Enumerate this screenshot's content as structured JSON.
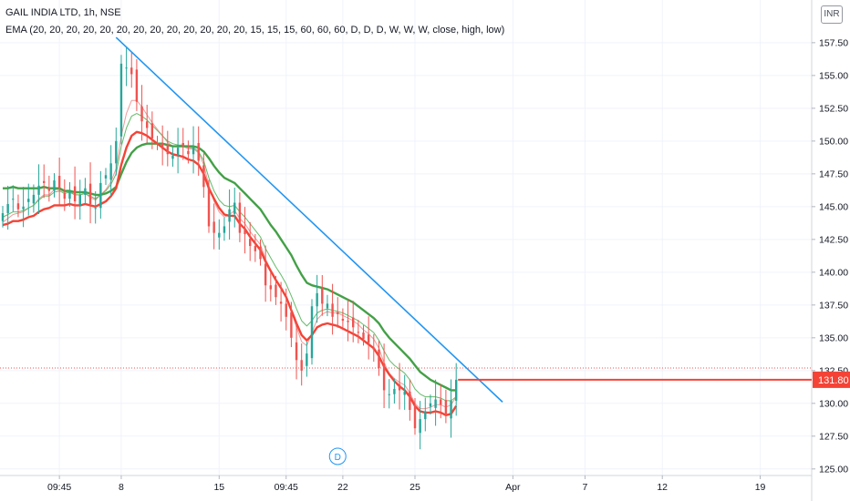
{
  "legend": {
    "title": "GAIL INDIA LTD, 1h, NSE",
    "ema": "EMA (20, 20, 20, 20, 20, 20, 20, 20, 20, 20, 20, 20, 20, 15, 15, 15, 60, 60, 60, D, D, D, W, W, W, close, high, low)"
  },
  "currency": "INR",
  "colors": {
    "up": "#26a69a",
    "down": "#ef5350",
    "trendline": "#2196f3",
    "ema_fast_thin": "#ef9a9a",
    "ema_green_thin": "#66bb6a",
    "ema_green_thick": "#43a047",
    "ema_red_thick": "#f44336",
    "level_line": "#f44336",
    "price_label_bg": "#f44336",
    "grid": "#f0f3fa"
  },
  "chart_data": {
    "type": "candlestick",
    "symbol": "GAIL INDIA LTD",
    "interval": "1h",
    "exchange": "NSE",
    "ylim": [
      124.5,
      160.2
    ],
    "y_ticks": [
      "125.00",
      "127.50",
      "130.00",
      "132.50",
      "135.00",
      "137.50",
      "140.00",
      "142.50",
      "145.00",
      "147.50",
      "150.00",
      "152.50",
      "155.00",
      "157.50"
    ],
    "x_ticks": [
      "09:45",
      "8",
      "15",
      "09:45",
      "22",
      "25",
      "Apr",
      "7",
      "12",
      "19"
    ],
    "x_tick_bars": [
      11,
      23,
      42,
      55,
      66,
      80,
      99,
      113,
      128,
      147
    ],
    "last_price": "131.80",
    "price_line": 132.7,
    "horizontal_level": 131.8,
    "event_marker": "D",
    "event_marker_bar": 65,
    "trendline": {
      "from": {
        "bar": 22,
        "price": 157.9
      },
      "to": {
        "bar": 97,
        "price": 130.1
      }
    },
    "last_bar": 88,
    "closes": [
      144.5,
      145.2,
      145.6,
      144.8,
      145.0,
      145.6,
      145.9,
      146.6,
      146.8,
      146.2,
      147.0,
      146.4,
      145.6,
      146.2,
      145.4,
      145.9,
      146.4,
      145.2,
      144.9,
      146.8,
      147.4,
      148.3,
      150.0,
      155.9,
      155.6,
      155.1,
      153.0,
      151.5,
      151.0,
      150.2,
      149.8,
      149.4,
      149.0,
      148.9,
      149.5,
      149.6,
      149.0,
      149.5,
      148.5,
      146.5,
      143.5,
      143.0,
      143.0,
      143.5,
      144.8,
      145.3,
      143.0,
      142.9,
      142.0,
      141.6,
      141.0,
      139.0,
      138.7,
      138.1,
      137.6,
      136.6,
      135.0,
      133.3,
      132.5,
      133.8,
      137.4,
      138.4,
      137.6,
      137.6,
      136.6,
      136.8,
      136.3,
      136.2,
      135.8,
      135.4,
      134.9,
      134.6,
      134.1,
      132.7,
      131.0,
      130.7,
      131.1,
      131.0,
      130.9,
      129.5,
      128.1,
      128.8,
      129.4,
      130.0,
      130.3,
      129.9,
      129.2,
      130.2,
      131.8
    ],
    "series": [
      {
        "name": "EMA fast (thin)",
        "values": [
          143.8,
          144.1,
          144.4,
          144.5,
          144.6,
          144.9,
          145.1,
          145.6,
          145.9,
          145.9,
          146.3,
          146.3,
          146.1,
          146.2,
          145.9,
          145.9,
          146.0,
          145.7,
          145.5,
          145.9,
          146.3,
          146.9,
          147.9,
          150.4,
          152.1,
          153.1,
          153.1,
          152.6,
          152.0,
          151.4,
          150.9,
          150.4,
          149.9,
          149.6,
          149.6,
          149.6,
          149.4,
          149.4,
          149.1,
          148.2,
          146.6,
          145.4,
          144.6,
          144.2,
          144.4,
          144.7,
          144.1,
          143.7,
          143.1,
          142.6,
          142.1,
          141.0,
          140.2,
          139.5,
          138.8,
          138.1,
          137.0,
          135.8,
          134.7,
          134.4,
          135.4,
          136.4,
          136.8,
          137.0,
          136.9,
          136.9,
          136.7,
          136.5,
          136.3,
          136.0,
          135.6,
          135.3,
          134.9,
          134.2,
          133.1,
          132.3,
          131.9,
          131.6,
          131.4,
          130.8,
          130.0,
          129.6,
          129.6,
          129.7,
          129.9,
          129.9,
          129.7,
          129.9,
          130.5
        ]
      },
      {
        "name": "EMA green (thin)",
        "values": [
          144.2,
          144.4,
          144.6,
          144.6,
          144.7,
          144.9,
          145.1,
          145.5,
          145.8,
          145.8,
          146.1,
          146.2,
          146.0,
          146.1,
          145.9,
          145.9,
          146.0,
          145.8,
          145.6,
          145.9,
          146.2,
          146.7,
          147.5,
          149.6,
          151.0,
          151.9,
          152.1,
          151.9,
          151.6,
          151.2,
          150.8,
          150.4,
          150.0,
          149.8,
          149.7,
          149.7,
          149.5,
          149.5,
          149.2,
          148.5,
          147.2,
          146.2,
          145.5,
          145.1,
          145.0,
          145.1,
          144.6,
          144.2,
          143.7,
          143.2,
          142.7,
          141.8,
          141.1,
          140.4,
          139.8,
          139.1,
          138.2,
          137.2,
          136.3,
          135.9,
          136.3,
          136.9,
          137.1,
          137.2,
          137.1,
          137.0,
          136.9,
          136.7,
          136.5,
          136.3,
          136.0,
          135.7,
          135.4,
          134.8,
          134.0,
          133.3,
          132.9,
          132.6,
          132.3,
          131.8,
          131.1,
          130.7,
          130.5,
          130.5,
          130.5,
          130.4,
          130.2,
          130.2,
          130.5
        ]
      },
      {
        "name": "EMA green (thick)",
        "values": [
          146.4,
          146.4,
          146.5,
          146.4,
          146.4,
          146.4,
          146.4,
          146.4,
          146.5,
          146.4,
          146.4,
          146.4,
          146.2,
          146.2,
          146.1,
          146.1,
          146.1,
          146.0,
          145.9,
          145.9,
          146.0,
          146.2,
          146.5,
          147.5,
          148.4,
          149.1,
          149.5,
          149.7,
          149.8,
          149.8,
          149.8,
          149.8,
          149.7,
          149.6,
          149.6,
          149.6,
          149.6,
          149.6,
          149.5,
          149.2,
          148.7,
          148.1,
          147.6,
          147.2,
          147.0,
          146.8,
          146.4,
          146.0,
          145.6,
          145.2,
          144.8,
          144.2,
          143.6,
          143.1,
          142.5,
          141.9,
          141.3,
          140.5,
          139.8,
          139.2,
          139.0,
          138.9,
          138.8,
          138.7,
          138.5,
          138.3,
          138.1,
          137.9,
          137.7,
          137.4,
          137.1,
          136.8,
          136.5,
          136.1,
          135.5,
          135.0,
          134.6,
          134.2,
          133.8,
          133.4,
          132.9,
          132.4,
          132.1,
          131.8,
          131.6,
          131.4,
          131.2,
          131.0,
          131.0
        ]
      },
      {
        "name": "EMA red (thick)",
        "values": [
          143.6,
          143.7,
          143.9,
          143.9,
          144.0,
          144.2,
          144.3,
          144.6,
          144.8,
          144.9,
          145.1,
          145.1,
          145.1,
          145.2,
          145.1,
          145.1,
          145.2,
          145.1,
          145.0,
          145.2,
          145.4,
          145.8,
          146.4,
          148.2,
          149.5,
          150.4,
          150.7,
          150.6,
          150.4,
          150.1,
          149.8,
          149.5,
          149.2,
          149.0,
          148.9,
          148.8,
          148.6,
          148.5,
          148.2,
          147.5,
          146.4,
          145.6,
          144.9,
          144.4,
          144.3,
          144.3,
          143.7,
          143.3,
          142.7,
          142.2,
          141.7,
          140.8,
          140.1,
          139.4,
          138.8,
          138.1,
          137.1,
          136.1,
          135.2,
          134.8,
          135.2,
          135.8,
          136.0,
          136.1,
          136.0,
          135.9,
          135.7,
          135.5,
          135.3,
          135.1,
          134.8,
          134.5,
          134.2,
          133.6,
          132.8,
          132.2,
          131.7,
          131.3,
          131.0,
          130.5,
          129.8,
          129.4,
          129.3,
          129.3,
          129.4,
          129.3,
          129.1,
          129.2,
          129.8
        ]
      }
    ]
  }
}
